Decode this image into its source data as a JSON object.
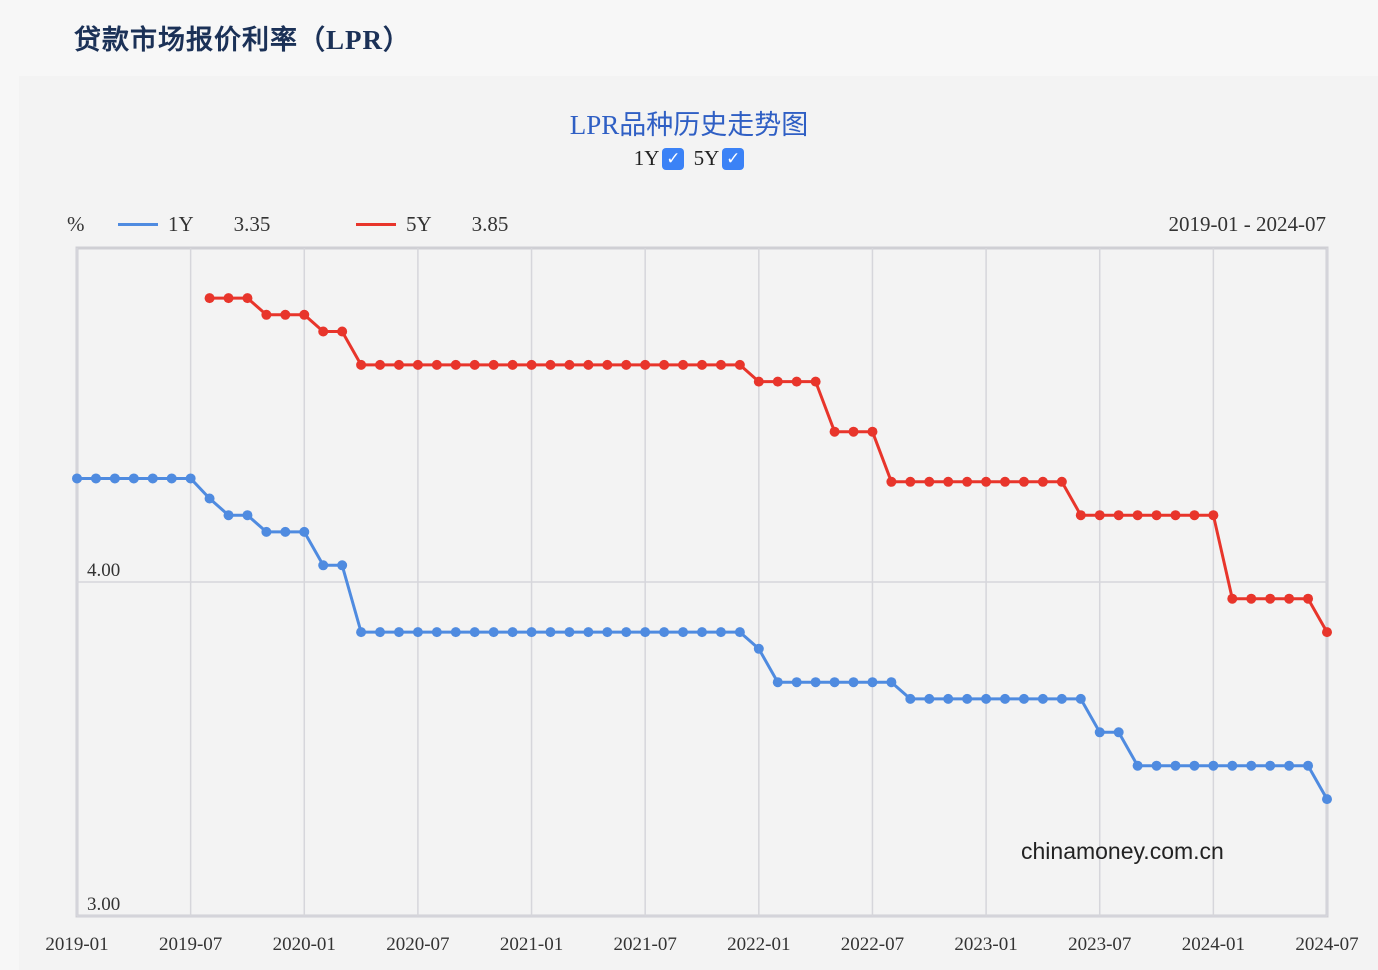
{
  "page_title": "贷款市场报价利率（LPR）",
  "toggles": [
    {
      "label": "1Y",
      "checked": true
    },
    {
      "label": "5Y",
      "checked": true
    }
  ],
  "watermark": "chinamoney.com.cn",
  "colors": {
    "1Y": "#4f8be0",
    "5Y": "#e8352b",
    "title": "#2f5fc4"
  },
  "chart_data": {
    "type": "line",
    "title": "LPR品种历史走势图",
    "unit": "%",
    "date_range": "2019-01 - 2024-07",
    "ylim": [
      3,
      5
    ],
    "yticks": [
      "4.00",
      "3.00"
    ],
    "xticks": [
      "2019-01",
      "2019-07",
      "2020-01",
      "2020-07",
      "2021-01",
      "2021-07",
      "2022-01",
      "2022-07",
      "2023-01",
      "2023-07",
      "2024-01",
      "2024-07"
    ],
    "grid": true,
    "legend_placement": "top-left",
    "series": [
      {
        "name": "1Y",
        "latest": "3.35",
        "start": "2019-01",
        "values": [
          4.31,
          4.31,
          4.31,
          4.31,
          4.31,
          4.31,
          4.31,
          4.25,
          4.2,
          4.2,
          4.15,
          4.15,
          4.15,
          4.05,
          4.05,
          3.85,
          3.85,
          3.85,
          3.85,
          3.85,
          3.85,
          3.85,
          3.85,
          3.85,
          3.85,
          3.85,
          3.85,
          3.85,
          3.85,
          3.85,
          3.85,
          3.85,
          3.85,
          3.85,
          3.85,
          3.85,
          3.8,
          3.7,
          3.7,
          3.7,
          3.7,
          3.7,
          3.7,
          3.7,
          3.65,
          3.65,
          3.65,
          3.65,
          3.65,
          3.65,
          3.65,
          3.65,
          3.65,
          3.65,
          3.55,
          3.55,
          3.45,
          3.45,
          3.45,
          3.45,
          3.45,
          3.45,
          3.45,
          3.45,
          3.45,
          3.45,
          3.35
        ]
      },
      {
        "name": "5Y",
        "latest": "3.85",
        "start": "2019-08",
        "values": [
          4.85,
          4.85,
          4.85,
          4.8,
          4.8,
          4.8,
          4.75,
          4.75,
          4.65,
          4.65,
          4.65,
          4.65,
          4.65,
          4.65,
          4.65,
          4.65,
          4.65,
          4.65,
          4.65,
          4.65,
          4.65,
          4.65,
          4.65,
          4.65,
          4.65,
          4.65,
          4.65,
          4.65,
          4.65,
          4.6,
          4.6,
          4.6,
          4.6,
          4.45,
          4.45,
          4.45,
          4.3,
          4.3,
          4.3,
          4.3,
          4.3,
          4.3,
          4.3,
          4.3,
          4.3,
          4.3,
          4.2,
          4.2,
          4.2,
          4.2,
          4.2,
          4.2,
          4.2,
          4.2,
          3.95,
          3.95,
          3.95,
          3.95,
          3.95,
          3.85
        ]
      }
    ]
  }
}
